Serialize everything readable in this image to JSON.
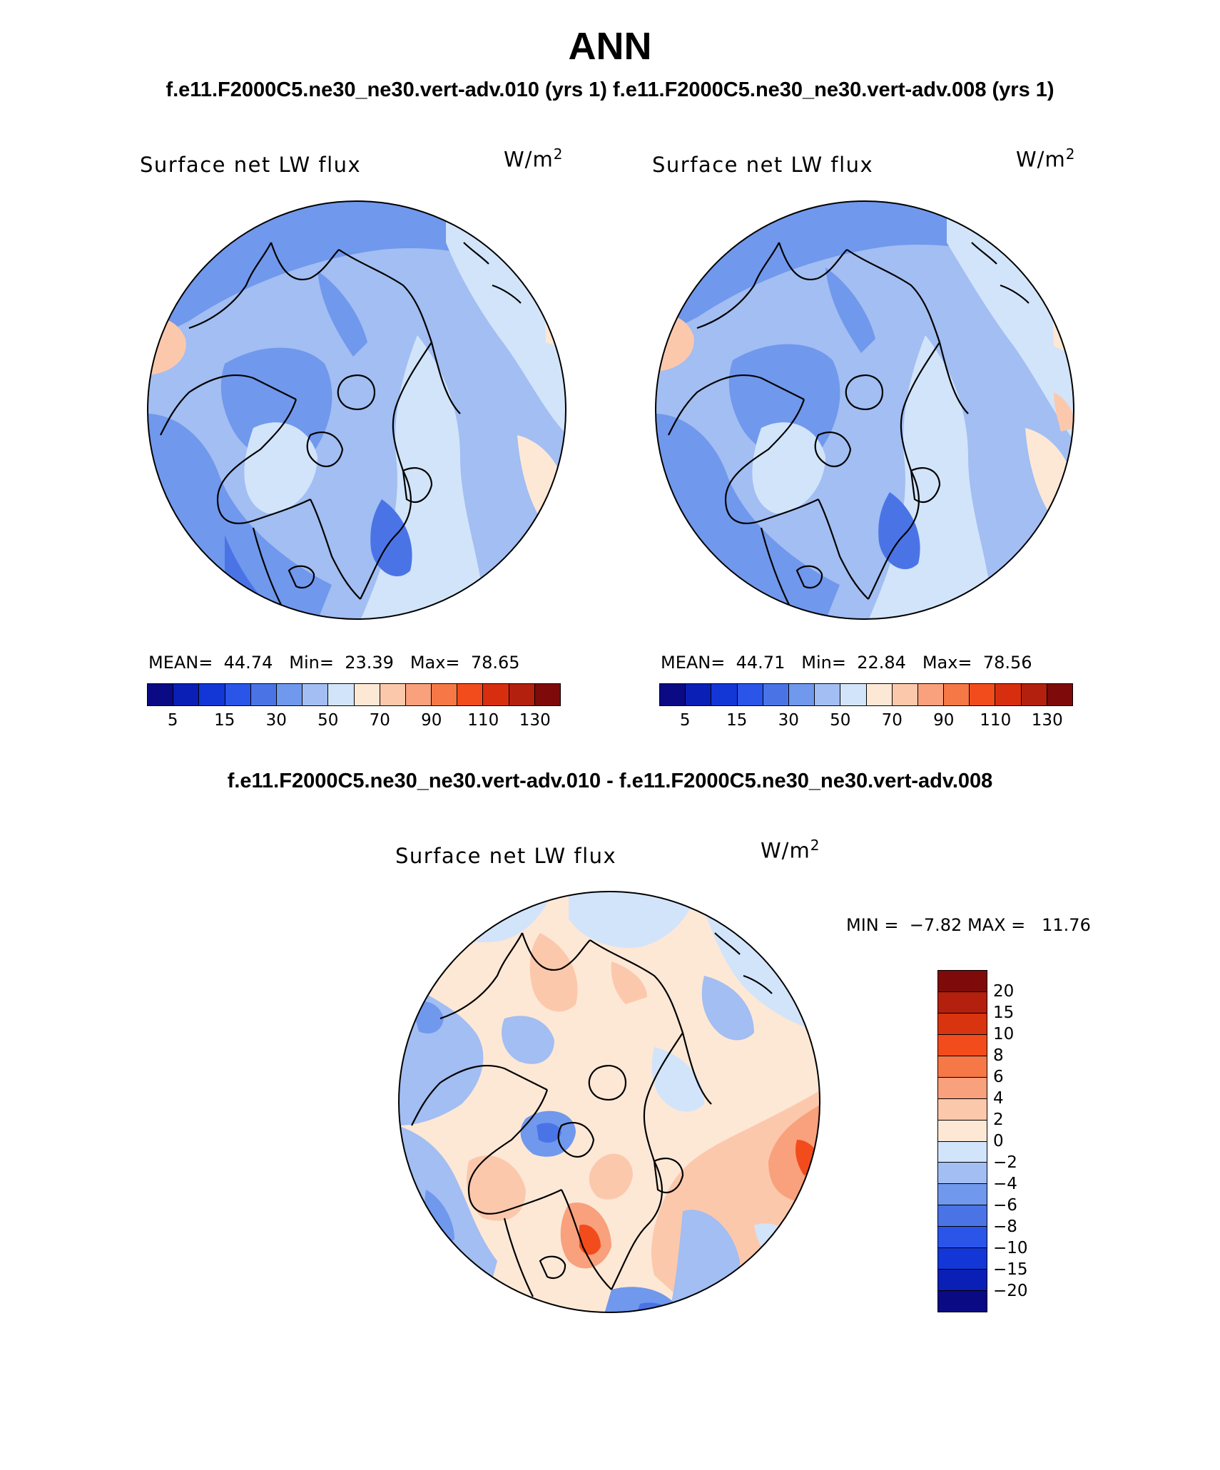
{
  "page": {
    "title": "ANN",
    "subtitle": "f.e11.F2000C5.ne30_ne30.vert-adv.010 (yrs 1) f.e11.F2000C5.ne30_ne30.vert-adv.008 (yrs 1)"
  },
  "panels": [
    {
      "label": "Surface net LW flux",
      "units_base": "W/m",
      "units_exp": "2",
      "stats": {
        "mean_label": "MEAN=",
        "mean": "44.74",
        "min_label": "Min=",
        "min": "23.39",
        "max_label": "Max=",
        "max": "78.65"
      }
    },
    {
      "label": "Surface net LW flux",
      "units_base": "W/m",
      "units_exp": "2",
      "stats": {
        "mean_label": "MEAN=",
        "mean": "44.71",
        "min_label": "Min=",
        "min": "22.84",
        "max_label": "Max=",
        "max": "78.56"
      }
    }
  ],
  "difference": {
    "title": "f.e11.F2000C5.ne30_ne30.vert-adv.010 - f.e11.F2000C5.ne30_ne30.vert-adv.008",
    "label": "Surface net LW flux",
    "units_base": "W/m",
    "units_exp": "2",
    "stats": {
      "min_label": "MIN =",
      "min": "−7.82",
      "max_label": "MAX =",
      "max": "11.76"
    }
  },
  "colorbar_main": {
    "colors": [
      "#0a0a84",
      "#0a1fb6",
      "#1237d6",
      "#2a55e8",
      "#4a74e6",
      "#7098ec",
      "#a2bef2",
      "#d2e4fa",
      "#fde8d6",
      "#fcc8ac",
      "#f9a07c",
      "#f67846",
      "#f24c1c",
      "#d82e10",
      "#b3200e",
      "#7e0a0a"
    ],
    "labels": [
      "5",
      "15",
      "30",
      "50",
      "70",
      "90",
      "110",
      "130"
    ]
  },
  "colorbar_diff": {
    "colors": [
      "#7e0a0a",
      "#b3200e",
      "#d8340f",
      "#f24c1c",
      "#f67846",
      "#f9a07c",
      "#fcc8ac",
      "#fde8d6",
      "#d2e4fa",
      "#a2bef2",
      "#7098ec",
      "#4a74e6",
      "#2a55e8",
      "#1237d6",
      "#0a1fb6",
      "#0a0a84"
    ],
    "labels": [
      "20",
      "15",
      "10",
      "8",
      "6",
      "4",
      "2",
      "0",
      "−2",
      "−4",
      "−6",
      "−8",
      "−10",
      "−15",
      "−20"
    ]
  }
}
